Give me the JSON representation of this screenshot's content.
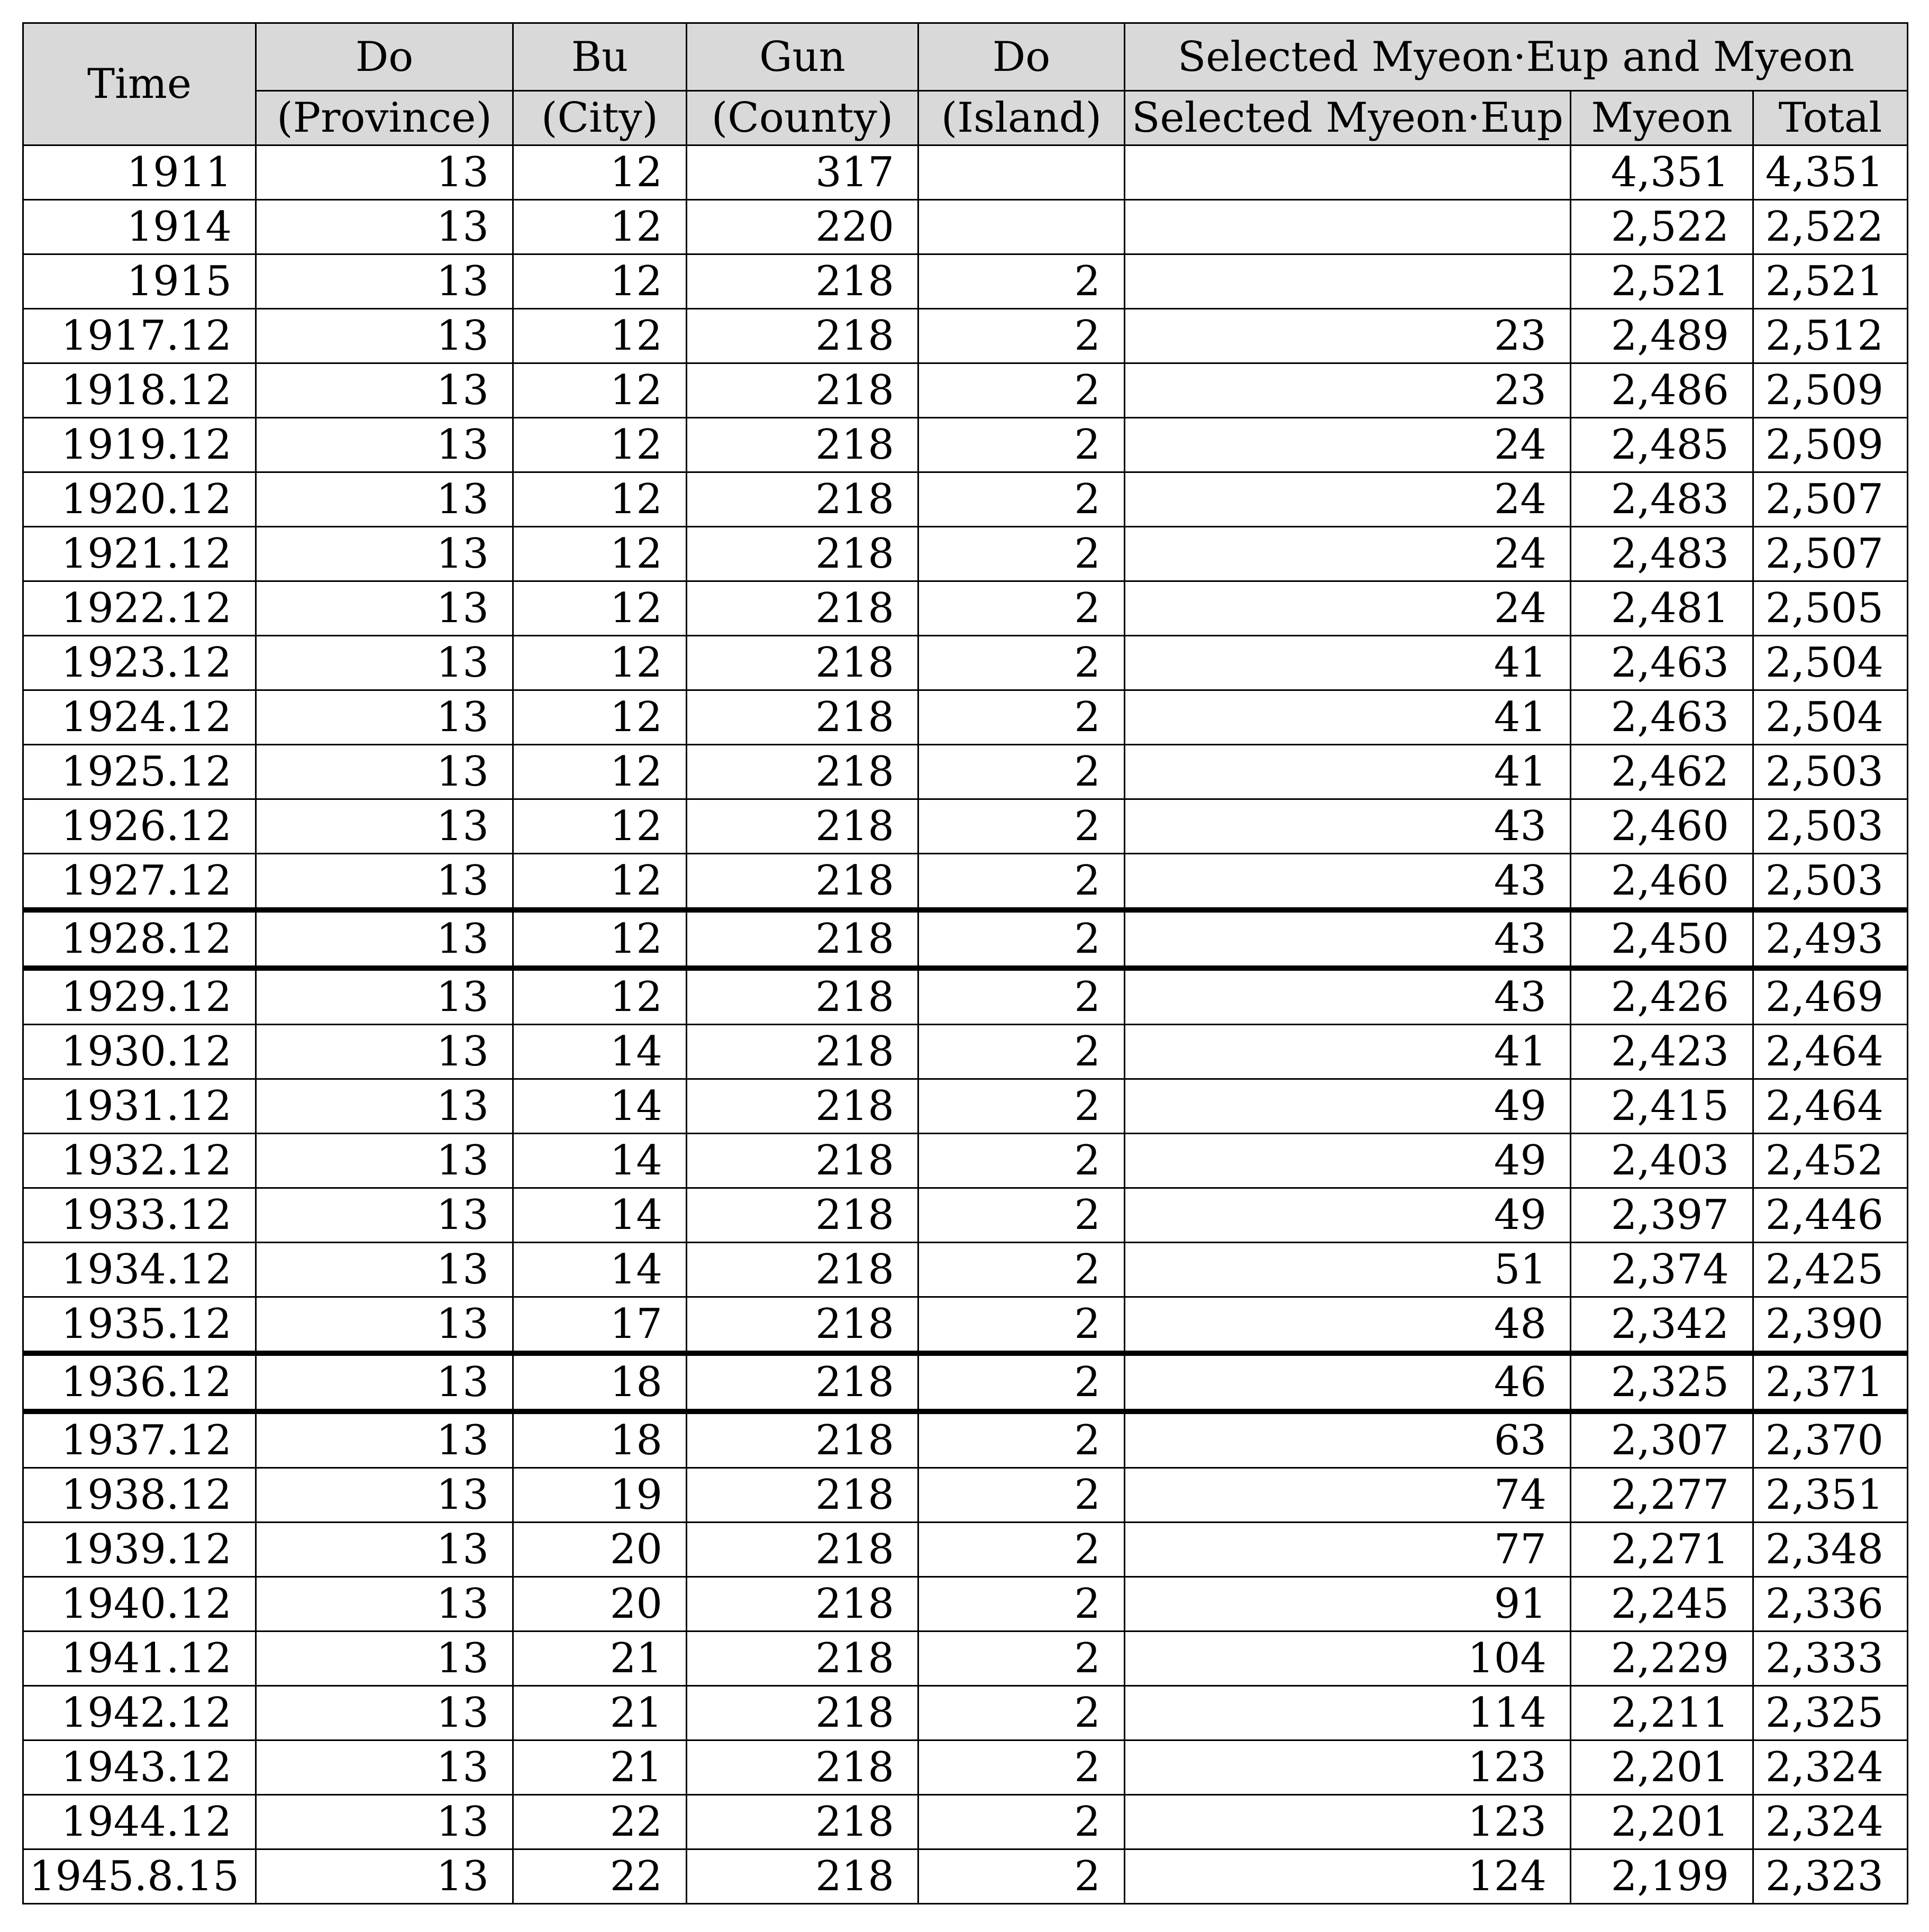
{
  "header": {
    "time": "Time",
    "do_province": [
      "Do",
      "(Province)"
    ],
    "bu_city": [
      "Bu",
      "(City)"
    ],
    "gun_county": [
      "Gun",
      "(County)"
    ],
    "do_island": [
      "Do",
      "(Island)"
    ],
    "group": "Selected Myeon·Eup and Myeon",
    "sub": [
      "Selected Myeon·Eup",
      "Myeon",
      "Total"
    ]
  },
  "rows": [
    [
      "1911",
      "13",
      "12",
      "317",
      "",
      "",
      "4,351",
      "4,351"
    ],
    [
      "1914",
      "13",
      "12",
      "220",
      "",
      "",
      "2,522",
      "2,522"
    ],
    [
      "1915",
      "13",
      "12",
      "218",
      "2",
      "",
      "2,521",
      "2,521"
    ],
    [
      "1917.12",
      "13",
      "12",
      "218",
      "2",
      "23",
      "2,489",
      "2,512"
    ],
    [
      "1918.12",
      "13",
      "12",
      "218",
      "2",
      "23",
      "2,486",
      "2,509"
    ],
    [
      "1919.12",
      "13",
      "12",
      "218",
      "2",
      "24",
      "2,485",
      "2,509"
    ],
    [
      "1920.12",
      "13",
      "12",
      "218",
      "2",
      "24",
      "2,483",
      "2,507"
    ],
    [
      "1921.12",
      "13",
      "12",
      "218",
      "2",
      "24",
      "2,483",
      "2,507"
    ],
    [
      "1922.12",
      "13",
      "12",
      "218",
      "2",
      "24",
      "2,481",
      "2,505"
    ],
    [
      "1923.12",
      "13",
      "12",
      "218",
      "2",
      "41",
      "2,463",
      "2,504"
    ],
    [
      "1924.12",
      "13",
      "12",
      "218",
      "2",
      "41",
      "2,463",
      "2,504"
    ],
    [
      "1925.12",
      "13",
      "12",
      "218",
      "2",
      "41",
      "2,462",
      "2,503"
    ],
    [
      "1926.12",
      "13",
      "12",
      "218",
      "2",
      "43",
      "2,460",
      "2,503"
    ],
    [
      "1927.12",
      "13",
      "12",
      "218",
      "2",
      "43",
      "2,460",
      "2,503"
    ],
    [
      "1928.12",
      "13",
      "12",
      "218",
      "2",
      "43",
      "2,450",
      "2,493"
    ],
    [
      "1929.12",
      "13",
      "12",
      "218",
      "2",
      "43",
      "2,426",
      "2,469"
    ],
    [
      "1930.12",
      "13",
      "14",
      "218",
      "2",
      "41",
      "2,423",
      "2,464"
    ],
    [
      "1931.12",
      "13",
      "14",
      "218",
      "2",
      "49",
      "2,415",
      "2,464"
    ],
    [
      "1932.12",
      "13",
      "14",
      "218",
      "2",
      "49",
      "2,403",
      "2,452"
    ],
    [
      "1933.12",
      "13",
      "14",
      "218",
      "2",
      "49",
      "2,397",
      "2,446"
    ],
    [
      "1934.12",
      "13",
      "14",
      "218",
      "2",
      "51",
      "2,374",
      "2,425"
    ],
    [
      "1935.12",
      "13",
      "17",
      "218",
      "2",
      "48",
      "2,342",
      "2,390"
    ],
    [
      "1936.12",
      "13",
      "18",
      "218",
      "2",
      "46",
      "2,325",
      "2,371"
    ],
    [
      "1937.12",
      "13",
      "18",
      "218",
      "2",
      "63",
      "2,307",
      "2,370"
    ],
    [
      "1938.12",
      "13",
      "19",
      "218",
      "2",
      "74",
      "2,277",
      "2,351"
    ],
    [
      "1939.12",
      "13",
      "20",
      "218",
      "2",
      "77",
      "2,271",
      "2,348"
    ],
    [
      "1940.12",
      "13",
      "20",
      "218",
      "2",
      "91",
      "2,245",
      "2,336"
    ],
    [
      "1941.12",
      "13",
      "21",
      "218",
      "2",
      "104",
      "2,229",
      "2,333"
    ],
    [
      "1942.12",
      "13",
      "21",
      "218",
      "2",
      "114",
      "2,211",
      "2,325"
    ],
    [
      "1943.12",
      "13",
      "21",
      "218",
      "2",
      "123",
      "2,201",
      "2,324"
    ],
    [
      "1944.12",
      "13",
      "22",
      "218",
      "2",
      "123",
      "2,201",
      "2,324"
    ],
    [
      "1945.8.15",
      "13",
      "22",
      "218",
      "2",
      "124",
      "2,199",
      "2,323"
    ]
  ]
}
